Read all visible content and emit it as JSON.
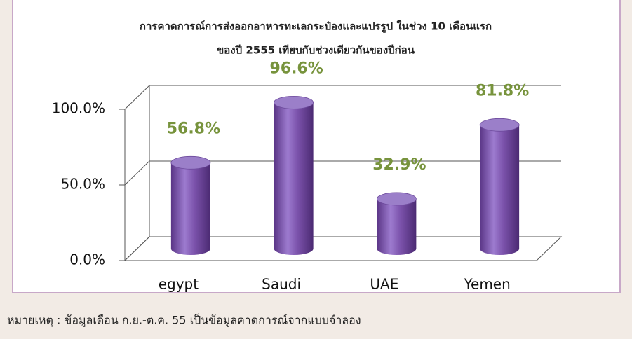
{
  "chart_data": {
    "type": "bar",
    "title": "การคาดการณ์การส่งออกอาหารทะเลกระป๋องและแปรรูป ในช่วง 10 เดือนแรก",
    "subtitle": "ของปี 2555 เทียบกับช่วงเดียวกันของปีก่อน",
    "categories": [
      "egypt",
      "Saudi",
      "UAE",
      "Yemen"
    ],
    "values": [
      56.8,
      96.6,
      32.9,
      81.8
    ],
    "value_labels": [
      "56.8%",
      "96.6%",
      "32.9%",
      "81.8%"
    ],
    "color": "#7b52ab",
    "ylim": [
      0,
      100
    ],
    "yticks": [
      {
        "value": 0,
        "label": "0.0%"
      },
      {
        "value": 50,
        "label": "50.0%"
      },
      {
        "value": 100,
        "label": "100.0%"
      }
    ],
    "grid": true,
    "note": "หมายเหตุ : ข้อมูลเดือน ก.ย.-ต.ค. 55 เป็นข้อมูลคาดการณ์จากแบบจำลอง"
  }
}
